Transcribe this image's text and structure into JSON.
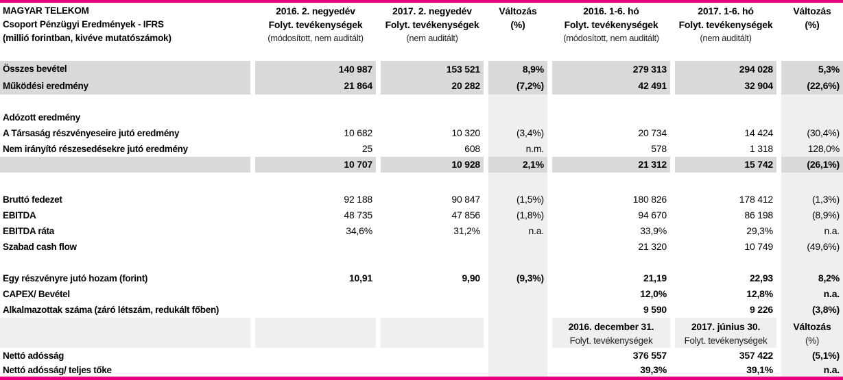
{
  "colors": {
    "magenta": "#e6007e",
    "row_highlight": "#d9d9d9",
    "column_shade": "#efefef"
  },
  "header": {
    "title_lines": [
      "MAGYAR TELEKOM",
      "Csoport Pénzügyi Eredmények - IFRS",
      "(millió forintban, kivéve mutatószámok)"
    ],
    "columns": [
      {
        "line1": "2016. 2. negyedév",
        "line2": "Folyt. tevékenységek",
        "line3": "(módosított, nem auditált)"
      },
      {
        "line1": "2017. 2. negyedév",
        "line2": "Folyt. tevékenységek",
        "line3": "(nem auditált)"
      },
      {
        "line1": "Változás",
        "line2": "(%)",
        "line3": ""
      },
      {
        "line1": "2016. 1-6. hó",
        "line2": "Folyt. tevékenységek",
        "line3": "(módosított, nem auditált)"
      },
      {
        "line1": "2017. 1-6. hó",
        "line2": "Folyt. tevékenységek",
        "line3": "(nem auditált)"
      },
      {
        "line1": "Változás",
        "line2": "(%)",
        "line3": ""
      }
    ]
  },
  "rows": [
    {
      "type": "spacer",
      "height": 23,
      "shade": false
    },
    {
      "type": "data",
      "height": 24,
      "label": "Összes bevétel",
      "values": [
        "140 987",
        "153 521",
        "8,9%",
        "279 313",
        "294 028",
        "5,3%"
      ],
      "highlight": true,
      "bold_values": true
    },
    {
      "type": "data",
      "height": 25,
      "label": "Működési eredmény",
      "values": [
        "21 864",
        "20 282",
        "(7,2%)",
        "42 491",
        "32 904",
        "(22,6%)"
      ],
      "highlight": true,
      "bold_values": true
    },
    {
      "type": "spacer",
      "height": 22,
      "shade": true
    },
    {
      "type": "data",
      "label": "Adózott eredmény",
      "values": [
        "",
        "",
        "",
        "",
        "",
        ""
      ],
      "shade": true
    },
    {
      "type": "data",
      "label": "A Társaság részvényeseire jutó eredmény",
      "values": [
        "10 682",
        "10 320",
        "(3,4%)",
        "20 734",
        "14 424",
        "(30,4%)"
      ],
      "shade": true
    },
    {
      "type": "data",
      "label": "Nem irányító részesedésekre jutó eredmény",
      "values": [
        "25",
        "608",
        "n.m.",
        "578",
        "1 318",
        "128,0%"
      ],
      "shade": true
    },
    {
      "type": "data",
      "label": "",
      "values": [
        "10 707",
        "10 928",
        "2,1%",
        "21 312",
        "15 742",
        "(26,1%)"
      ],
      "highlight": true,
      "bold_values": true
    },
    {
      "type": "spacer",
      "height": 28,
      "shade": true
    },
    {
      "type": "data",
      "label": "Bruttó fedezet",
      "values": [
        "92 188",
        "90 847",
        "(1,5%)",
        "180 826",
        "178 412",
        "(1,3%)"
      ],
      "shade": true
    },
    {
      "type": "data",
      "label": "EBITDA",
      "values": [
        "48 735",
        "47 856",
        "(1,8%)",
        "94 670",
        "86 198",
        "(8,9%)"
      ],
      "shade": true
    },
    {
      "type": "data",
      "label": "EBITDA ráta",
      "values": [
        "34,6%",
        "31,2%",
        "n.a.",
        "33,9%",
        "29,3%",
        "n.a."
      ],
      "shade": true
    },
    {
      "type": "data",
      "label": "Szabad cash flow",
      "values": [
        "",
        "",
        "",
        "21 320",
        "10 749",
        "(49,6%)"
      ],
      "shade": true
    },
    {
      "type": "spacer",
      "height": 23,
      "shade": true
    },
    {
      "type": "data",
      "label": "Egy részvényre jutó hozam (forint)",
      "values": [
        "10,91",
        "9,90",
        "(9,3%)",
        "21,19",
        "22,93",
        "8,2%"
      ],
      "bold_values": true,
      "shade": true
    },
    {
      "type": "data",
      "label": "CAPEX/ Bevétel",
      "values": [
        "",
        "",
        "",
        "12,0%",
        "12,8%",
        "n.a."
      ],
      "bold_values": true,
      "shade": true
    },
    {
      "type": "data",
      "label": "Alkalmazottak száma (záró létszám, redukált főben)",
      "values": [
        "",
        "",
        "",
        "9 590",
        "9 226",
        "(3,8%)"
      ],
      "bold_values": true,
      "shade": true
    },
    {
      "type": "subheader",
      "height": 44,
      "cols": [
        {
          "line1": "2016. december 31.",
          "line2": "Folyt. tevékenységek"
        },
        {
          "line1": "2017. június 30.",
          "line2": "Folyt. tevékenységek"
        },
        {
          "line1": "Változás",
          "line2": "(%)"
        }
      ]
    },
    {
      "type": "data",
      "label": "Nettó adósság",
      "values": [
        "",
        "",
        "",
        "376 557",
        "357 422",
        "(5,1%)"
      ],
      "bold_values": true,
      "shade": true
    },
    {
      "type": "data",
      "height": 19,
      "label": "Nettó adósság/ teljes tőke",
      "values": [
        "",
        "",
        "",
        "39,3%",
        "39,1%",
        "n.a."
      ],
      "bold_values": true,
      "shade": true
    }
  ]
}
